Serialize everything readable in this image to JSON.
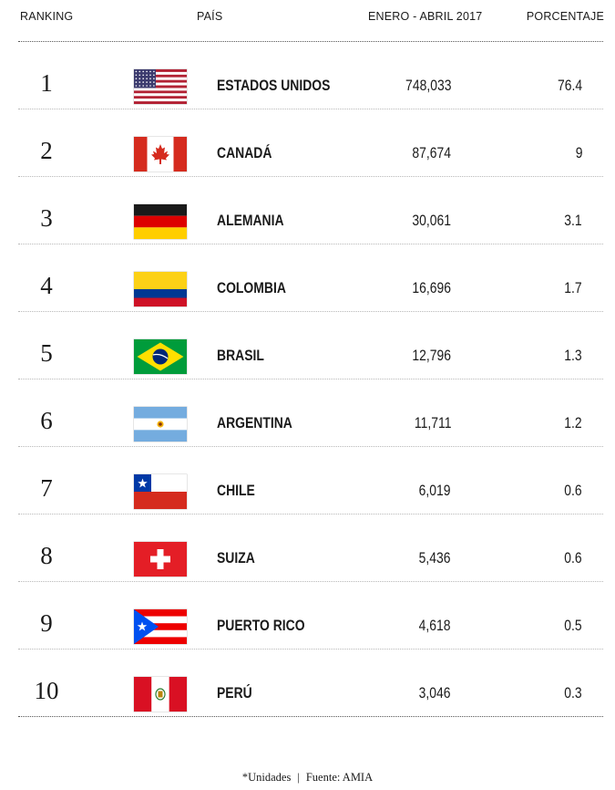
{
  "header": {
    "ranking": "RANKING",
    "pais": "PAÍS",
    "period": "ENERO - ABRIL 2017",
    "percent": "PORCENTAJE"
  },
  "footer": {
    "units_note": "*Unidades",
    "separator": "|",
    "source": "Fuente: AMIA"
  },
  "chart_data": {
    "type": "table",
    "columns": [
      "RANKING",
      "PAÍS",
      "ENERO - ABRIL 2017",
      "PORCENTAJE"
    ],
    "rows": [
      {
        "rank": "1",
        "country": "ESTADOS UNIDOS",
        "units": "748,033",
        "percent": "76.4",
        "flag": "usa"
      },
      {
        "rank": "2",
        "country": "CANADÁ",
        "units": "87,674",
        "percent": "9",
        "flag": "canada"
      },
      {
        "rank": "3",
        "country": "ALEMANIA",
        "units": "30,061",
        "percent": "3.1",
        "flag": "germany"
      },
      {
        "rank": "4",
        "country": "COLOMBIA",
        "units": "16,696",
        "percent": "1.7",
        "flag": "colombia"
      },
      {
        "rank": "5",
        "country": "BRASIL",
        "units": "12,796",
        "percent": "1.3",
        "flag": "brazil"
      },
      {
        "rank": "6",
        "country": "ARGENTINA",
        "units": "11,711",
        "percent": "1.2",
        "flag": "argentina"
      },
      {
        "rank": "7",
        "country": "CHILE",
        "units": "6,019",
        "percent": "0.6",
        "flag": "chile"
      },
      {
        "rank": "8",
        "country": "SUIZA",
        "units": "5,436",
        "percent": "0.6",
        "flag": "switzerland"
      },
      {
        "rank": "9",
        "country": "PUERTO RICO",
        "units": "4,618",
        "percent": "0.5",
        "flag": "puerto-rico"
      },
      {
        "rank": "10",
        "country": "PERÚ",
        "units": "3,046",
        "percent": "0.3",
        "flag": "peru"
      }
    ]
  }
}
